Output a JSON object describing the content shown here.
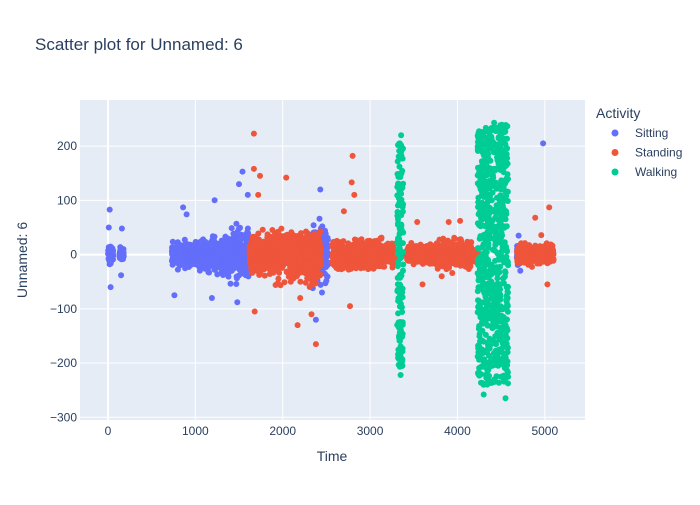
{
  "chart_data": {
    "type": "scatter",
    "title": "Scatter plot for Unnamed: 6",
    "xlabel": "Time",
    "ylabel": "Unnamed: 6",
    "xlim": [
      -320,
      5460
    ],
    "ylim": [
      -305,
      285
    ],
    "x_ticks": [
      0,
      1000,
      2000,
      3000,
      4000,
      5000
    ],
    "y_ticks": [
      -300,
      -200,
      -100,
      0,
      100,
      200
    ],
    "grid": true,
    "legend": {
      "title": "Activity",
      "placement": "right"
    },
    "series": [
      {
        "name": "Sitting",
        "color": "#636efa",
        "clusters": [
          {
            "x": [
              0,
              60
            ],
            "amp": 35,
            "outliers": [
              [
                20,
                83
              ],
              [
                30,
                -60
              ],
              [
                10,
                50
              ]
            ]
          },
          {
            "x": [
              130,
              180
            ],
            "amp": 25,
            "outliers": [
              [
                160,
                48
              ],
              [
                150,
                -38
              ]
            ]
          },
          {
            "x": [
              730,
              1050
            ],
            "amp": 40,
            "outliers": [
              [
                860,
                87
              ],
              [
                760,
                -75
              ],
              [
                900,
                74
              ]
            ]
          },
          {
            "x": [
              1050,
              1340
            ],
            "amp": 55,
            "outliers": [
              [
                1220,
                100
              ],
              [
                1190,
                -80
              ]
            ]
          },
          {
            "x": [
              1340,
              1620
            ],
            "amp": 80,
            "outliers": [
              [
                1500,
                130
              ],
              [
                1540,
                153
              ],
              [
                1600,
                110
              ],
              [
                1480,
                -88
              ]
            ]
          },
          {
            "x": [
              2280,
              2520
            ],
            "amp": 90,
            "outliers": [
              [
                2430,
                120
              ],
              [
                2380,
                -120
              ],
              [
                2450,
                -70
              ]
            ]
          },
          {
            "x": [
              3210,
              3330
            ],
            "amp": 10,
            "outliers": []
          },
          {
            "x": [
              3400,
              3720
            ],
            "amp": 6,
            "outliers": []
          },
          {
            "x": [
              4680,
              4740
            ],
            "amp": 25,
            "outliers": [
              [
                4700,
                35
              ],
              [
                4720,
                -30
              ]
            ]
          },
          {
            "x": [
              4880,
              5030
            ],
            "amp": 18,
            "outliers": [
              [
                4980,
                205
              ]
            ]
          }
        ]
      },
      {
        "name": "Standing",
        "color": "#ef553b",
        "clusters": [
          {
            "x": [
              1620,
              1880
            ],
            "amp": 65,
            "outliers": [
              [
                1670,
                223
              ],
              [
                1670,
                158
              ],
              [
                1740,
                145
              ],
              [
                1720,
                110
              ],
              [
                1680,
                -105
              ]
            ]
          },
          {
            "x": [
              1880,
              2260
            ],
            "amp": 75,
            "outliers": [
              [
                2040,
                142
              ],
              [
                2170,
                -130
              ],
              [
                2200,
                -80
              ]
            ]
          },
          {
            "x": [
              2260,
              2440
            ],
            "amp": 85,
            "outliers": [
              [
                2380,
                -165
              ],
              [
                2330,
                -110
              ]
            ]
          },
          {
            "x": [
              2560,
              3180
            ],
            "amp": 45,
            "outliers": [
              [
                2800,
                182
              ],
              [
                2790,
                133
              ],
              [
                2820,
                110
              ],
              [
                2770,
                -95
              ],
              [
                2700,
                80
              ]
            ]
          },
          {
            "x": [
              3180,
              3300
            ],
            "amp": 35,
            "outliers": []
          },
          {
            "x": [
              3420,
              3750
            ],
            "amp": 30,
            "outliers": [
              [
                3540,
                60
              ],
              [
                3600,
                -55
              ]
            ]
          },
          {
            "x": [
              3750,
              4160
            ],
            "amp": 45,
            "outliers": [
              [
                3900,
                60
              ],
              [
                4030,
                62
              ],
              [
                3820,
                -40
              ]
            ]
          },
          {
            "x": [
              4180,
              4240
            ],
            "amp": 20,
            "outliers": []
          },
          {
            "x": [
              4680,
              5100
            ],
            "amp": 30,
            "outliers": [
              [
                5050,
                87
              ],
              [
                4890,
                68
              ],
              [
                5030,
                -55
              ],
              [
                4960,
                36
              ]
            ]
          }
        ]
      },
      {
        "name": "Walking",
        "color": "#00cc96",
        "clusters": [
          {
            "x": [
              3310,
              3380
            ],
            "amp": 210,
            "outliers": [
              [
                3355,
                220
              ],
              [
                3350,
                -222
              ],
              [
                3340,
                205
              ]
            ]
          },
          {
            "x": [
              4230,
              4580
            ],
            "amp": 240,
            "outliers": [
              [
                4420,
                243
              ],
              [
                4500,
                222
              ],
              [
                4300,
                -258
              ],
              [
                4550,
                -265
              ]
            ]
          }
        ]
      }
    ]
  }
}
